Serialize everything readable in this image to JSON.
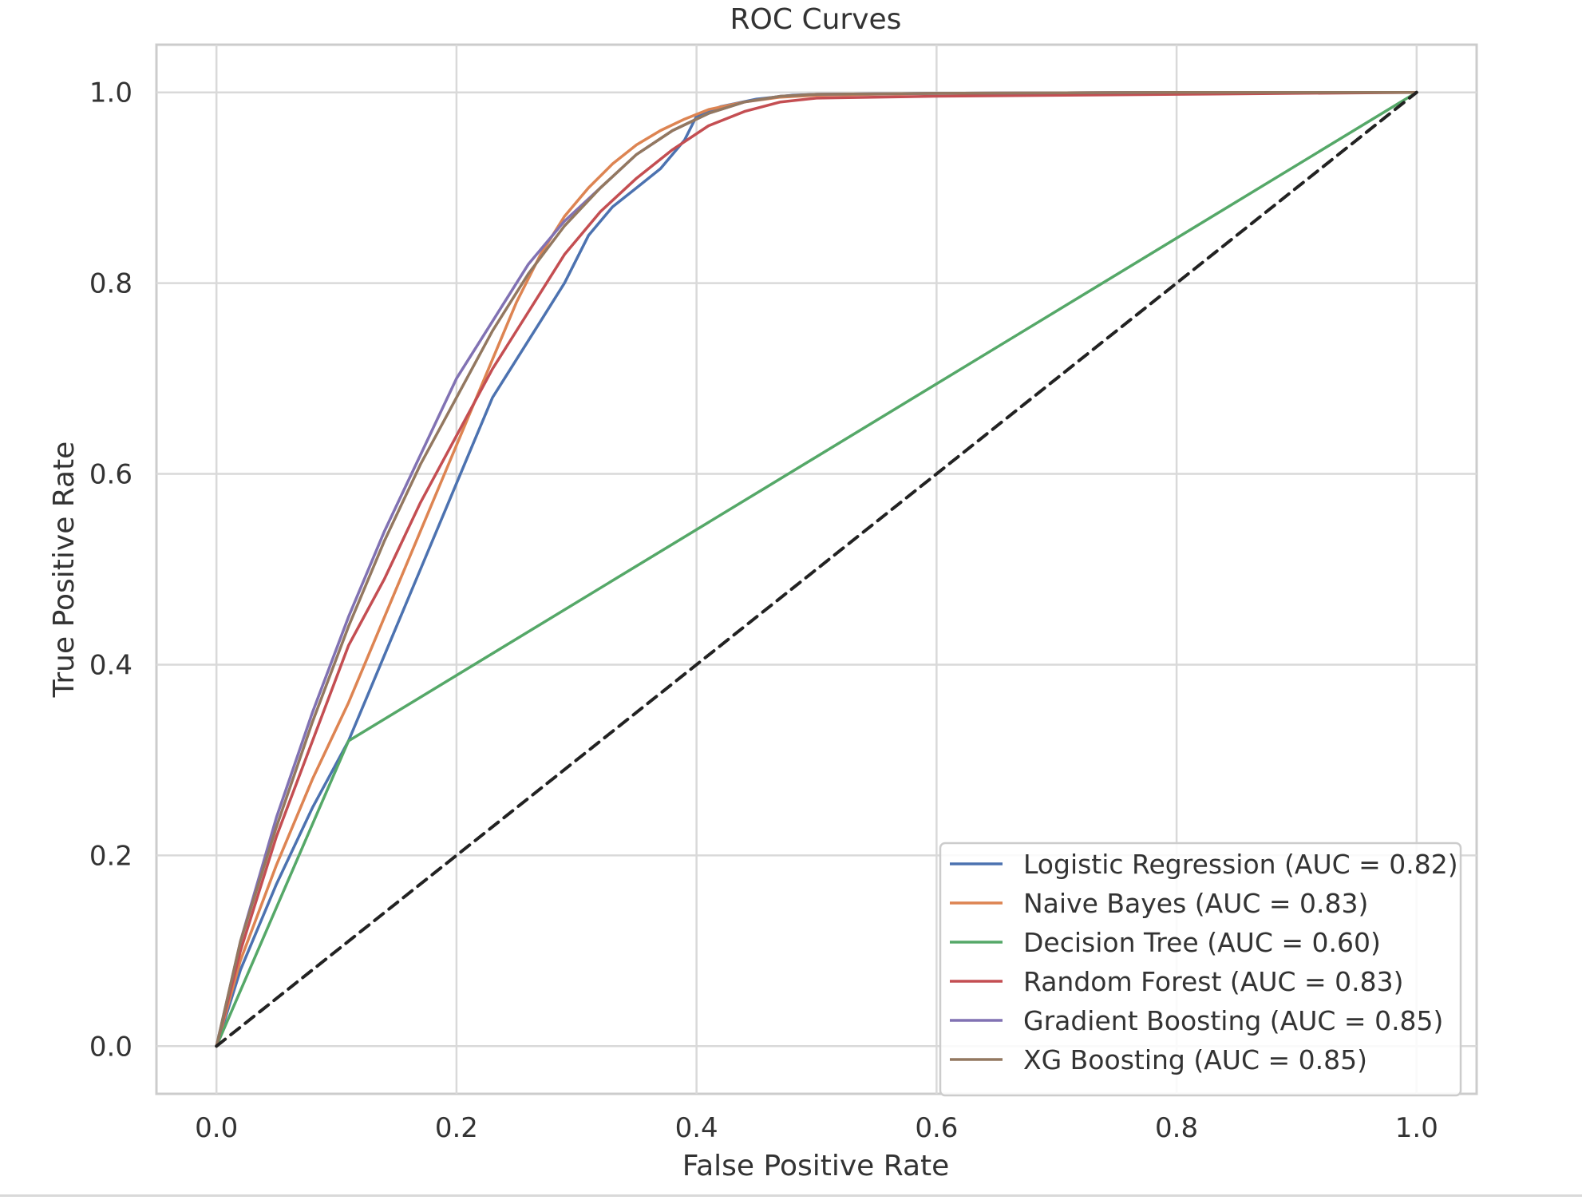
{
  "chart_data": {
    "type": "line",
    "title": "ROC Curves",
    "xlabel": "False Positive Rate",
    "ylabel": "True Positive Rate",
    "xlim": [
      -0.05,
      1.05
    ],
    "ylim": [
      -0.05,
      1.05
    ],
    "xticks": [
      "0.0",
      "0.2",
      "0.4",
      "0.6",
      "0.8",
      "1.0"
    ],
    "yticks": [
      "0.0",
      "0.2",
      "0.4",
      "0.6",
      "0.8",
      "1.0"
    ],
    "grid": true,
    "legend_position": "lower right",
    "series": [
      {
        "name": "Logistic Regression (AUC = 0.82)",
        "color": "#4C72B0",
        "x": [
          0,
          0.02,
          0.05,
          0.08,
          0.11,
          0.13,
          0.15,
          0.17,
          0.19,
          0.21,
          0.23,
          0.25,
          0.27,
          0.29,
          0.31,
          0.33,
          0.35,
          0.37,
          0.39,
          0.4,
          0.42,
          0.45,
          0.48,
          0.5,
          0.6,
          0.8,
          1.0
        ],
        "y": [
          0,
          0.08,
          0.17,
          0.25,
          0.32,
          0.38,
          0.44,
          0.5,
          0.56,
          0.62,
          0.68,
          0.72,
          0.76,
          0.8,
          0.85,
          0.88,
          0.9,
          0.92,
          0.95,
          0.975,
          0.985,
          0.993,
          0.997,
          0.998,
          0.999,
          1.0,
          1.0
        ]
      },
      {
        "name": "Naive Bayes (AUC = 0.83)",
        "color": "#DD8452",
        "x": [
          0,
          0.02,
          0.05,
          0.08,
          0.11,
          0.13,
          0.15,
          0.17,
          0.19,
          0.21,
          0.23,
          0.25,
          0.27,
          0.29,
          0.31,
          0.33,
          0.35,
          0.37,
          0.39,
          0.41,
          0.44,
          0.47,
          0.5,
          0.6,
          0.8,
          1.0
        ],
        "y": [
          0,
          0.09,
          0.19,
          0.28,
          0.36,
          0.42,
          0.48,
          0.54,
          0.6,
          0.66,
          0.72,
          0.78,
          0.83,
          0.87,
          0.9,
          0.925,
          0.945,
          0.96,
          0.972,
          0.982,
          0.99,
          0.995,
          0.997,
          0.999,
          1.0,
          1.0
        ]
      },
      {
        "name": "Decision Tree (AUC = 0.60)",
        "color": "#55A868",
        "x": [
          0,
          0.11,
          1.0
        ],
        "y": [
          0,
          0.32,
          1.0
        ]
      },
      {
        "name": "Random Forest (AUC = 0.83)",
        "color": "#C44E52",
        "x": [
          0,
          0.02,
          0.05,
          0.08,
          0.11,
          0.14,
          0.17,
          0.2,
          0.23,
          0.26,
          0.29,
          0.32,
          0.35,
          0.38,
          0.41,
          0.44,
          0.47,
          0.5,
          0.6,
          0.8,
          1.0
        ],
        "y": [
          0,
          0.1,
          0.22,
          0.32,
          0.42,
          0.49,
          0.57,
          0.64,
          0.71,
          0.77,
          0.83,
          0.875,
          0.91,
          0.94,
          0.965,
          0.98,
          0.99,
          0.994,
          0.996,
          0.998,
          1.0
        ]
      },
      {
        "name": "Gradient Boosting (AUC = 0.85)",
        "color": "#8172B3",
        "x": [
          0,
          0.02,
          0.05,
          0.08,
          0.11,
          0.14,
          0.17,
          0.2,
          0.23,
          0.26,
          0.29,
          0.32,
          0.35,
          0.38,
          0.41,
          0.44,
          0.47,
          0.5,
          0.6,
          0.8,
          1.0
        ],
        "y": [
          0,
          0.11,
          0.24,
          0.35,
          0.45,
          0.54,
          0.62,
          0.7,
          0.76,
          0.82,
          0.865,
          0.9,
          0.935,
          0.96,
          0.978,
          0.99,
          0.996,
          0.998,
          0.999,
          1.0,
          1.0
        ]
      },
      {
        "name": "XG Boosting (AUC = 0.85)",
        "color": "#937860",
        "x": [
          0,
          0.02,
          0.05,
          0.08,
          0.11,
          0.14,
          0.17,
          0.2,
          0.23,
          0.26,
          0.29,
          0.32,
          0.35,
          0.38,
          0.41,
          0.44,
          0.47,
          0.5,
          0.6,
          0.8,
          1.0
        ],
        "y": [
          0,
          0.11,
          0.23,
          0.34,
          0.44,
          0.53,
          0.61,
          0.68,
          0.75,
          0.81,
          0.86,
          0.9,
          0.935,
          0.96,
          0.978,
          0.99,
          0.996,
          0.998,
          0.999,
          1.0,
          1.0
        ]
      },
      {
        "name": "",
        "color": "#222222",
        "dashed": true,
        "x": [
          0,
          1
        ],
        "y": [
          0,
          1
        ]
      }
    ]
  }
}
